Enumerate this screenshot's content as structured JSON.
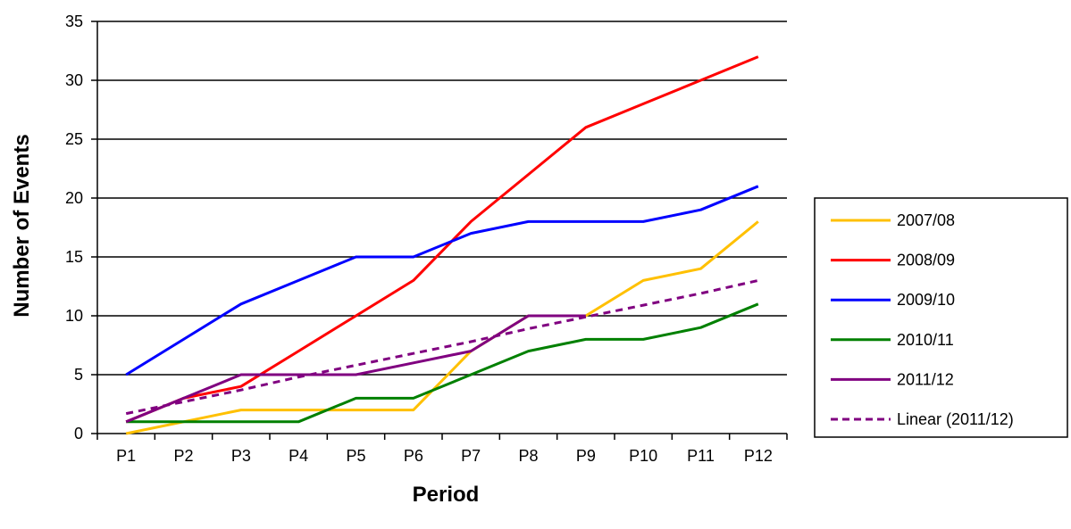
{
  "chart_data": {
    "type": "line",
    "title": "",
    "xlabel": "Period",
    "ylabel": "Number of Events",
    "categories": [
      "P1",
      "P2",
      "P3",
      "P4",
      "P5",
      "P6",
      "P7",
      "P8",
      "P9",
      "P10",
      "P11",
      "P12"
    ],
    "ylim": [
      0,
      35
    ],
    "yticks": [
      "0",
      "5",
      "10",
      "15",
      "20",
      "25",
      "30",
      "35"
    ],
    "grid": "horizontal",
    "legend_position": "right",
    "series": [
      {
        "name": "2007/08",
        "color": "#FFC000",
        "dashed": false,
        "values": [
          0,
          1,
          2,
          2,
          2,
          2,
          7,
          10,
          10,
          13,
          14,
          18
        ]
      },
      {
        "name": "2008/09",
        "color": "#FF0000",
        "dashed": false,
        "values": [
          1,
          3,
          4,
          7,
          10,
          13,
          18,
          22,
          26,
          28,
          30,
          32
        ]
      },
      {
        "name": "2009/10",
        "color": "#0000FF",
        "dashed": false,
        "values": [
          5,
          8,
          11,
          13,
          15,
          15,
          17,
          18,
          18,
          18,
          19,
          21
        ]
      },
      {
        "name": "2010/11",
        "color": "#008000",
        "dashed": false,
        "values": [
          1,
          1,
          1,
          1,
          3,
          3,
          5,
          7,
          8,
          8,
          9,
          11
        ]
      },
      {
        "name": "2011/12",
        "color": "#800080",
        "dashed": false,
        "values": [
          1,
          3,
          5,
          5,
          5,
          6,
          7,
          10,
          10,
          null,
          null,
          null
        ]
      },
      {
        "name": "Linear (2011/12)",
        "color": "#800080",
        "dashed": true,
        "values": [
          1.7,
          2.7,
          3.7,
          4.8,
          5.8,
          6.8,
          7.8,
          8.9,
          9.9,
          10.9,
          11.9,
          13.0
        ]
      }
    ]
  }
}
